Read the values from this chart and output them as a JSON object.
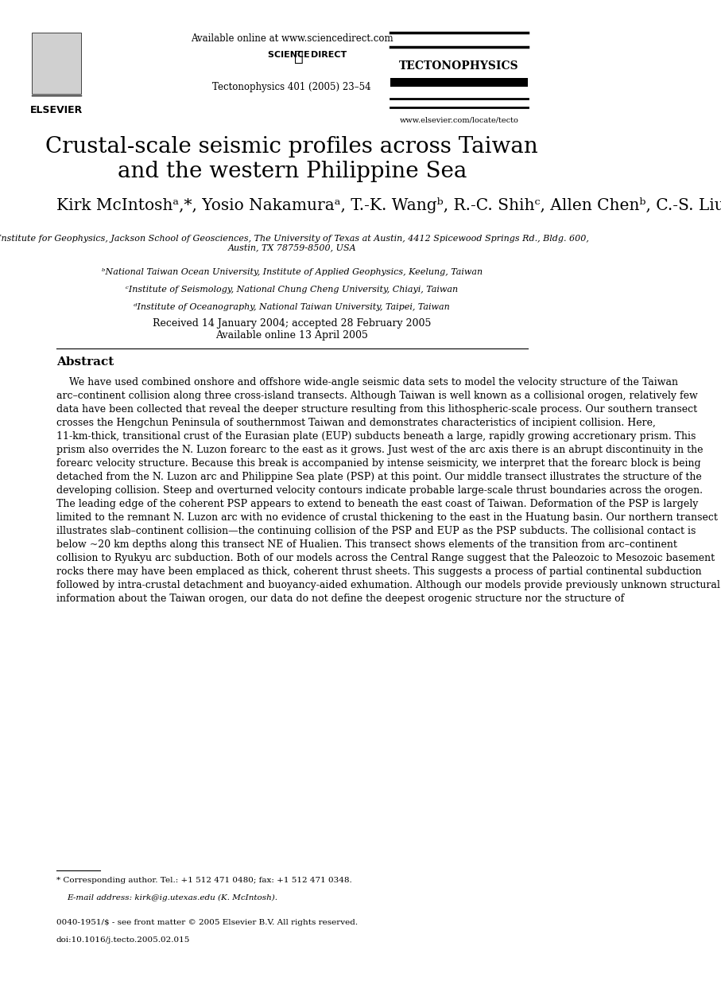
{
  "bg_color": "#ffffff",
  "title": "Crustal-scale seismic profiles across Taiwan\nand the western Philippine Sea",
  "title_fontsize": 20,
  "authors": "Kirk McIntoshᵃ,*, Yosio Nakamuraᵃ, T.-K. Wangᵇ, R.-C. Shihᶜ, Allen Chenᵇ, C.-S. Liuᵈ",
  "authors_fontsize": 14.5,
  "affil_a": "ᵃInstitute for Geophysics, Jackson School of Geosciences, The University of Texas at Austin, 4412 Spicewood Springs Rd., Bldg. 600,\nAustin, TX 78759-8500, USA",
  "affil_b": "ᵇNational Taiwan Ocean University, Institute of Applied Geophysics, Keelung, Taiwan",
  "affil_c": "ᶜInstitute of Seismology, National Chung Cheng University, Chiayi, Taiwan",
  "affil_d": "ᵈInstitute of Oceanography, National Taiwan University, Taipei, Taiwan",
  "affil_fontsize": 8,
  "dates": "Received 14 January 2004; accepted 28 February 2005\nAvailable online 13 April 2005",
  "dates_fontsize": 9,
  "abstract_header": "Abstract",
  "abstract_header_fontsize": 11,
  "abstract_text": "    We have used combined onshore and offshore wide-angle seismic data sets to model the velocity structure of the Taiwan arc–continent collision along three cross-island transects. Although Taiwan is well known as a collisional orogen, relatively few data have been collected that reveal the deeper structure resulting from this lithospheric-scale process. Our southern transect crosses the Hengchun Peninsula of southernmost Taiwan and demonstrates characteristics of incipient collision. Here, 11-km-thick, transitional crust of the Eurasian plate (EUP) subducts beneath a large, rapidly growing accretionary prism. This prism also overrides the N. Luzon forearc to the east as it grows. Just west of the arc axis there is an abrupt discontinuity in the forearc velocity structure. Because this break is accompanied by intense seismicity, we interpret that the forearc block is being detached from the N. Luzon arc and Philippine Sea plate (PSP) at this point. Our middle transect illustrates the structure of the developing collision. Steep and overturned velocity contours indicate probable large-scale thrust boundaries across the orogen. The leading edge of the coherent PSP appears to extend to beneath the east coast of Taiwan. Deformation of the PSP is largely limited to the remnant N. Luzon arc with no evidence of crustal thickening to the east in the Huatung basin. Our northern transect illustrates slab–continent collision—the continuing collision of the PSP and EUP as the PSP subducts. The collisional contact is below ~20 km depths along this transect NE of Hualien. This transect shows elements of the transition from arc–continent collision to Ryukyu arc subduction. Both of our models across the Central Range suggest that the Paleozoic to Mesozoic basement rocks there may have been emplaced as thick, coherent thrust sheets. This suggests a process of partial continental subduction followed by intra-crustal detachment and buoyancy-aided exhumation. Although our models provide previously unknown structural information about the Taiwan orogen, our data do not define the deepest orogenic structure nor the structure of",
  "abstract_fontsize": 9,
  "header_available": "Available online at www.sciencedirect.com",
  "header_journal_ref": "Tectonophysics 401 (2005) 23–54",
  "journal_name": "TECTONOPHYSICS",
  "journal_url": "www.elsevier.com/locate/tecto",
  "footnote_star": "* Corresponding author. Tel.: +1 512 471 0480; fax: +1 512 471 0348.",
  "footnote_email": "E-mail address: kirk@ig.utexas.edu (K. McIntosh).",
  "footnote_issn": "0040-1951/$ - see front matter © 2005 Elsevier B.V. All rights reserved.",
  "footnote_doi": "doi:10.1016/j.tecto.2005.02.015"
}
